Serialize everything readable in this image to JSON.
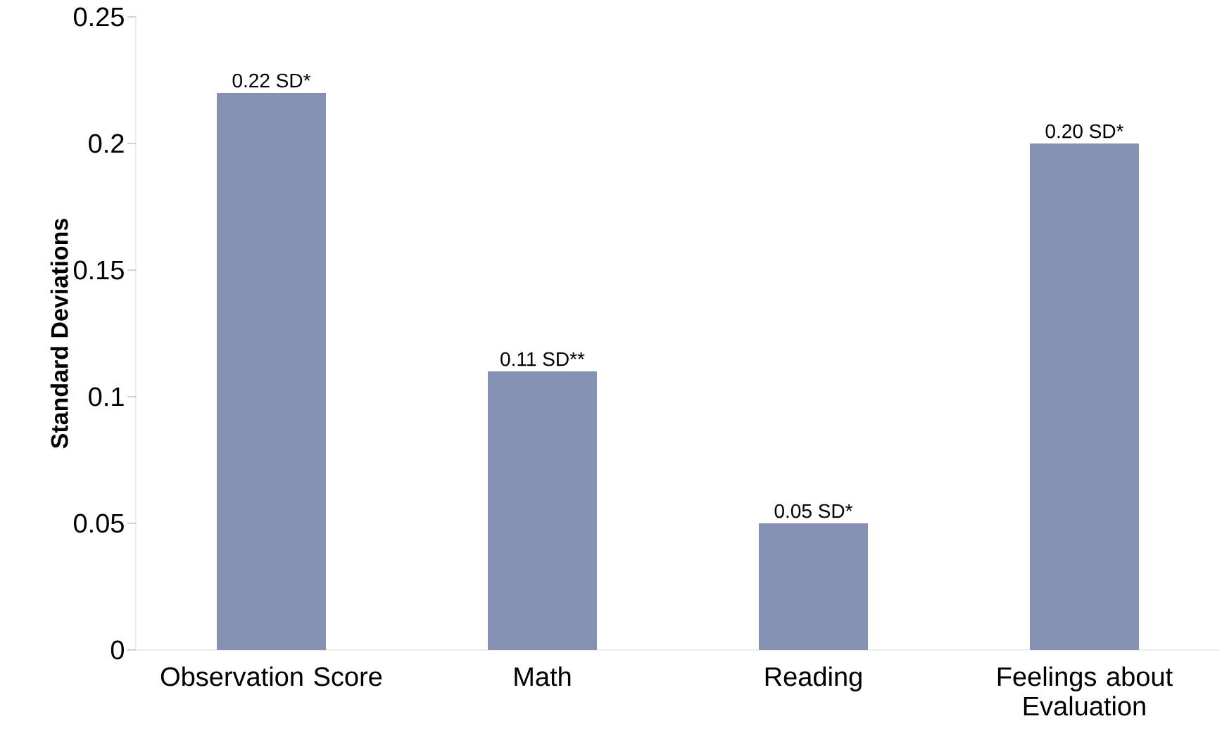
{
  "chart_data": {
    "type": "bar",
    "ylabel": "Standard Deviations",
    "categories": [
      "Observation Score",
      "Math",
      "Reading",
      "Feelings about Evaluation"
    ],
    "values": [
      0.22,
      0.11,
      0.05,
      0.2
    ],
    "value_labels": [
      "0.22 SD*",
      "0.11 SD**",
      "0.05 SD*",
      "0.20 SD*"
    ],
    "color": "#8491b2",
    "ylim": [
      0,
      0.25
    ],
    "yticks": [
      0,
      0.05,
      0.1,
      0.15,
      0.2,
      0.25
    ],
    "grid": false
  }
}
